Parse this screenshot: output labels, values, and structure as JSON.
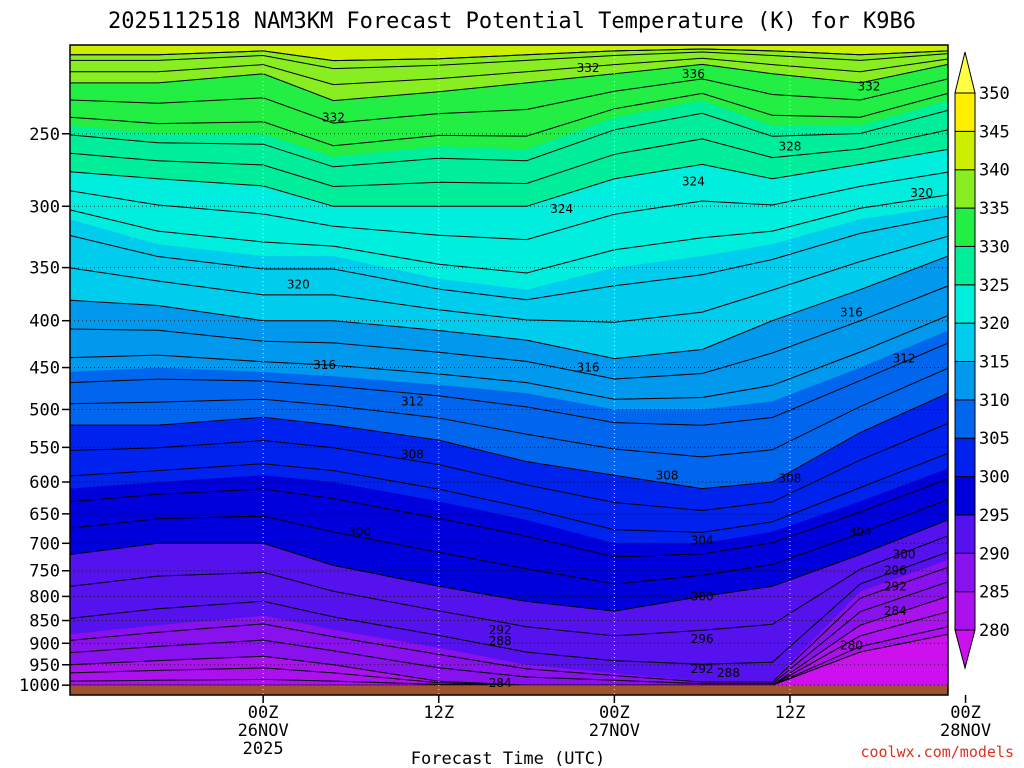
{
  "chart_data": {
    "type": "heatmap",
    "title": "2025112518 NAM3KM Forecast Potential Temperature (K) for K9B6",
    "xlabel": "Forecast Time (UTC)",
    "ylabel": "",
    "credit": "coolwx.com/models",
    "y_axis": {
      "scale": "log-pressure",
      "ticks": [
        250,
        300,
        350,
        400,
        450,
        500,
        550,
        600,
        650,
        700,
        750,
        800,
        850,
        900,
        950,
        1000
      ],
      "tick_labels": [
        "250",
        "300",
        "350",
        "400",
        "450",
        "500",
        "550",
        "600",
        "650",
        "700",
        "750",
        "800",
        "850",
        "900",
        "950",
        "1000"
      ],
      "range": [
        1025,
        200
      ]
    },
    "x_axis": {
      "units": "hours",
      "range": [
        -5,
        45
      ],
      "ticks": [
        {
          "hour": 6,
          "lines": [
            "00Z",
            "26NOV",
            "2025"
          ]
        },
        {
          "hour": 16,
          "lines": [
            "12Z"
          ]
        },
        {
          "hour": 26,
          "lines": [
            "00Z",
            "27NOV"
          ]
        },
        {
          "hour": 36,
          "lines": [
            "12Z"
          ]
        },
        {
          "hour": 46,
          "lines": [
            "00Z",
            "28NOV"
          ]
        }
      ]
    },
    "grid": true,
    "colorbar": {
      "levels": [
        280,
        285,
        290,
        295,
        300,
        305,
        310,
        315,
        320,
        325,
        330,
        335,
        340,
        345,
        350
      ],
      "labels": [
        "280",
        "285",
        "290",
        "295",
        "300",
        "305",
        "310",
        "315",
        "320",
        "325",
        "330",
        "335",
        "340",
        "345",
        "350"
      ],
      "colors": [
        "#cc11ee",
        "#aa11ee",
        "#8811ee",
        "#5511ee",
        "#0000dd",
        "#0022ee",
        "#0066ee",
        "#0099ee",
        "#00ccee",
        "#00eedd",
        "#00ee99",
        "#22ee44",
        "#88ee22",
        "#ccee00",
        "#ffee00",
        "#ffff44"
      ]
    },
    "profiles": [
      {
        "hour": -5,
        "p_at_theta": {
          "285": 1000,
          "290": 950,
          "295": 880,
          "300": 720,
          "305": 610,
          "310": 520,
          "315": 455,
          "320": 380,
          "325": 310,
          "330": 275,
          "335": 245,
          "340": 220,
          "345": 205
        }
      },
      {
        "hour": 0,
        "p_at_theta": {
          "285": 1000,
          "290": 940,
          "295": 860,
          "300": 700,
          "305": 600,
          "310": 520,
          "315": 450,
          "320": 385,
          "325": 330,
          "330": 280,
          "335": 250,
          "340": 220,
          "345": 205
        }
      },
      {
        "hour": 6,
        "p_at_theta": {
          "285": 1000,
          "290": 930,
          "295": 840,
          "300": 700,
          "305": 590,
          "310": 510,
          "315": 455,
          "320": 400,
          "325": 340,
          "330": 285,
          "335": 250,
          "340": 215,
          "345": 203
        }
      },
      {
        "hour": 10,
        "p_at_theta": {
          "285": 1000,
          "290": 950,
          "295": 870,
          "300": 740,
          "305": 600,
          "310": 520,
          "315": 460,
          "320": 400,
          "325": 340,
          "330": 300,
          "335": 265,
          "340": 230,
          "345": 208
        }
      },
      {
        "hour": 16,
        "p_at_theta": {
          "285": 1000,
          "290": 990,
          "295": 910,
          "300": 780,
          "305": 630,
          "310": 540,
          "315": 470,
          "320": 410,
          "325": 360,
          "330": 300,
          "335": 258,
          "340": 225,
          "345": 207
        }
      },
      {
        "hour": 21,
        "p_at_theta": {
          "285": 1000,
          "290": 1000,
          "295": 950,
          "300": 810,
          "305": 660,
          "310": 570,
          "315": 480,
          "320": 420,
          "325": 370,
          "330": 300,
          "335": 260,
          "340": 220,
          "345": 205
        }
      },
      {
        "hour": 26,
        "p_at_theta": {
          "285": 1000,
          "290": 1000,
          "295": 970,
          "300": 830,
          "305": 700,
          "310": 590,
          "315": 500,
          "320": 440,
          "325": 350,
          "330": 280,
          "335": 240,
          "340": 215,
          "345": 203
        }
      },
      {
        "hour": 31,
        "p_at_theta": {
          "285": 1000,
          "290": 1000,
          "295": 990,
          "300": 800,
          "305": 700,
          "310": 610,
          "315": 500,
          "320": 430,
          "325": 340,
          "330": 270,
          "335": 230,
          "340": 210,
          "345": 202
        }
      },
      {
        "hour": 35,
        "p_at_theta": {
          "285": 1000,
          "290": 1000,
          "295": 990,
          "300": 780,
          "305": 680,
          "310": 600,
          "315": 490,
          "320": 400,
          "325": 330,
          "330": 280,
          "335": 245,
          "340": 215,
          "345": 203
        }
      },
      {
        "hour": 40,
        "p_at_theta": {
          "285": 920,
          "290": 860,
          "295": 790,
          "300": 720,
          "305": 630,
          "310": 530,
          "315": 450,
          "320": 370,
          "325": 310,
          "330": 270,
          "335": 245,
          "340": 220,
          "345": 205
        }
      },
      {
        "hour": 45,
        "p_at_theta": {
          "285": 880,
          "290": 800,
          "295": 730,
          "300": 660,
          "305": 580,
          "310": 480,
          "315": 410,
          "320": 340,
          "325": 300,
          "330": 260,
          "335": 230,
          "340": 210,
          "345": 203
        }
      }
    ],
    "contour_labels": [
      {
        "text": "332",
        "hour": 10,
        "p": 240
      },
      {
        "text": "324",
        "hour": 23,
        "p": 302
      },
      {
        "text": "320",
        "hour": 8.0,
        "p": 365
      },
      {
        "text": "316",
        "hour": 9.5,
        "p": 447
      },
      {
        "text": "312",
        "hour": 14.5,
        "p": 490
      },
      {
        "text": "308",
        "hour": 14.5,
        "p": 560
      },
      {
        "text": "300",
        "hour": 11.5,
        "p": 680
      },
      {
        "text": "292",
        "hour": 19.5,
        "p": 870
      },
      {
        "text": "288",
        "hour": 19.5,
        "p": 895
      },
      {
        "text": "284",
        "hour": 19.5,
        "p": 995
      },
      {
        "text": "332",
        "hour": 24.5,
        "p": 212
      },
      {
        "text": "316",
        "hour": 24.5,
        "p": 450
      },
      {
        "text": "308",
        "hour": 29,
        "p": 590
      },
      {
        "text": "304",
        "hour": 31,
        "p": 695
      },
      {
        "text": "300",
        "hour": 31,
        "p": 800
      },
      {
        "text": "296",
        "hour": 31,
        "p": 890
      },
      {
        "text": "292",
        "hour": 31,
        "p": 960
      },
      {
        "text": "288",
        "hour": 32.5,
        "p": 970
      },
      {
        "text": "336",
        "hour": 30.5,
        "p": 215
      },
      {
        "text": "324",
        "hour": 30.5,
        "p": 282
      },
      {
        "text": "328",
        "hour": 36,
        "p": 258
      },
      {
        "text": "332",
        "hour": 40.5,
        "p": 222
      },
      {
        "text": "320",
        "hour": 43.5,
        "p": 290
      },
      {
        "text": "316",
        "hour": 39.5,
        "p": 392
      },
      {
        "text": "312",
        "hour": 42.5,
        "p": 440
      },
      {
        "text": "308",
        "hour": 36,
        "p": 595
      },
      {
        "text": "304",
        "hour": 40,
        "p": 680
      },
      {
        "text": "300",
        "hour": 42.5,
        "p": 720
      },
      {
        "text": "296",
        "hour": 42,
        "p": 750
      },
      {
        "text": "292",
        "hour": 42,
        "p": 780
      },
      {
        "text": "284",
        "hour": 42,
        "p": 830
      },
      {
        "text": "280",
        "hour": 39.5,
        "p": 905
      }
    ]
  }
}
